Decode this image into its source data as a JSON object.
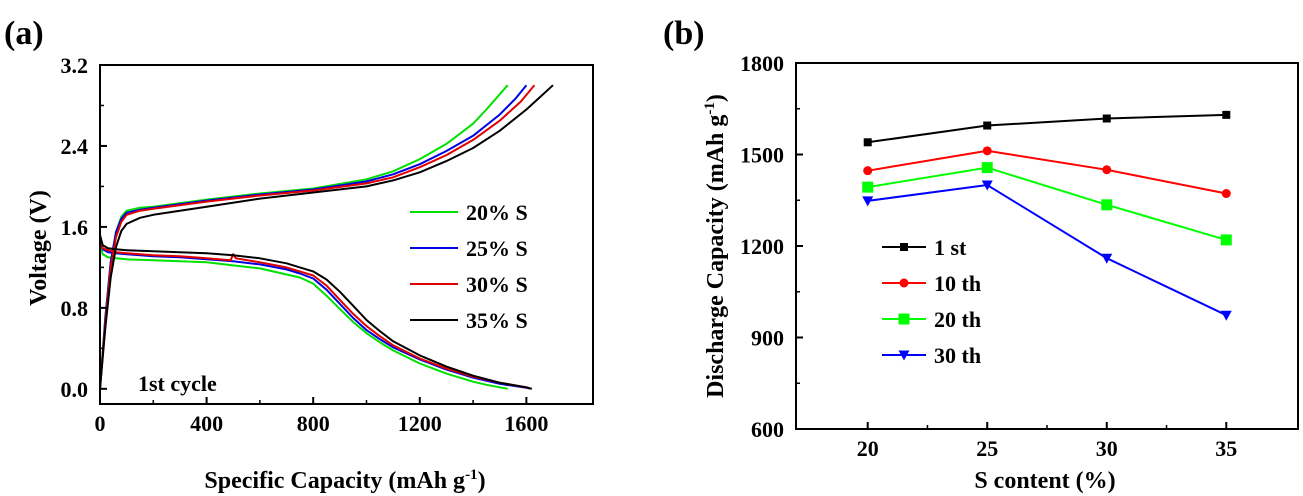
{
  "chart_data": [
    {
      "panel_label": "(a)",
      "type": "line",
      "xlabel": "Specific Capacity (mAh g",
      "xlabel_sup": "-1",
      "xlabel_close": ")",
      "ylabel": "Voltage (V)",
      "xlim": [
        0,
        1850
      ],
      "ylim": [
        -0.15,
        3.2
      ],
      "xticks": [
        0,
        400,
        800,
        1200,
        1600
      ],
      "xtick_labels": [
        "0",
        "400",
        "800",
        "1200",
        "1600"
      ],
      "yticks": [
        0.0,
        0.8,
        1.6,
        2.4,
        3.2
      ],
      "ytick_labels": [
        "0.0",
        "0.8",
        "1.6",
        "2.4",
        "3.2"
      ],
      "annotation": "1st cycle",
      "legend_position": "right",
      "series": [
        {
          "name": "20% S",
          "color": "#00e000",
          "discharge": {
            "x": [
              0,
              10,
              30,
              60,
              100,
              200,
              300,
              400,
              500,
              600,
              700,
              750,
              800,
              850,
              900,
              950,
              1000,
              1050,
              1100,
              1200,
              1300,
              1400,
              1450,
              1500,
              1530
            ],
            "y": [
              1.45,
              1.33,
              1.3,
              1.29,
              1.28,
              1.27,
              1.26,
              1.25,
              1.22,
              1.19,
              1.13,
              1.1,
              1.04,
              0.92,
              0.79,
              0.66,
              0.55,
              0.46,
              0.38,
              0.25,
              0.15,
              0.07,
              0.04,
              0.015,
              0.0
            ]
          },
          "charge": {
            "x": [
              0,
              20,
              40,
              60,
              80,
              100,
              150,
              200,
              400,
              600,
              800,
              1000,
              1100,
              1200,
              1300,
              1400,
              1450,
              1500,
              1530
            ],
            "y": [
              0.0,
              0.7,
              1.25,
              1.55,
              1.7,
              1.76,
              1.79,
              1.8,
              1.87,
              1.93,
              1.98,
              2.07,
              2.15,
              2.27,
              2.42,
              2.62,
              2.76,
              2.91,
              3.0
            ]
          }
        },
        {
          "name": "25% S",
          "color": "#0000e0",
          "discharge": {
            "x": [
              0,
              10,
              30,
              60,
              100,
              200,
              300,
              400,
              500,
              600,
              700,
              750,
              800,
              850,
              900,
              950,
              1000,
              1050,
              1100,
              1200,
              1300,
              1400,
              1500,
              1600,
              1620
            ],
            "y": [
              1.48,
              1.38,
              1.35,
              1.34,
              1.33,
              1.31,
              1.3,
              1.28,
              1.26,
              1.23,
              1.18,
              1.14,
              1.09,
              0.98,
              0.84,
              0.7,
              0.58,
              0.49,
              0.41,
              0.29,
              0.19,
              0.11,
              0.05,
              0.01,
              0.0
            ]
          },
          "charge": {
            "x": [
              0,
              20,
              40,
              60,
              80,
              100,
              150,
              200,
              400,
              600,
              800,
              1000,
              1100,
              1200,
              1300,
              1400,
              1500,
              1560,
              1600
            ],
            "y": [
              0.0,
              0.7,
              1.25,
              1.55,
              1.68,
              1.74,
              1.77,
              1.79,
              1.86,
              1.92,
              1.97,
              2.05,
              2.12,
              2.22,
              2.35,
              2.5,
              2.71,
              2.87,
              3.0
            ]
          }
        },
        {
          "name": "30% S",
          "color": "#e00000",
          "discharge": {
            "x": [
              0,
              10,
              30,
              60,
              100,
              200,
              300,
              400,
              490,
              500,
              510,
              600,
              700,
              750,
              800,
              850,
              900,
              950,
              1000,
              1050,
              1100,
              1200,
              1300,
              1400,
              1500,
              1600,
              1610
            ],
            "y": [
              1.5,
              1.39,
              1.37,
              1.35,
              1.34,
              1.32,
              1.31,
              1.29,
              1.27,
              1.33,
              1.29,
              1.25,
              1.2,
              1.16,
              1.12,
              1.02,
              0.88,
              0.74,
              0.62,
              0.52,
              0.43,
              0.3,
              0.2,
              0.12,
              0.06,
              0.015,
              0.0
            ]
          },
          "charge": {
            "x": [
              0,
              20,
              40,
              60,
              80,
              100,
              150,
              200,
              400,
              600,
              800,
              1000,
              1100,
              1200,
              1300,
              1400,
              1500,
              1580,
              1630
            ],
            "y": [
              0.0,
              0.65,
              1.2,
              1.5,
              1.65,
              1.72,
              1.76,
              1.78,
              1.85,
              1.91,
              1.96,
              2.03,
              2.09,
              2.19,
              2.31,
              2.46,
              2.65,
              2.84,
              3.0
            ]
          }
        },
        {
          "name": "35% S",
          "color": "#000000",
          "discharge": {
            "x": [
              0,
              10,
              30,
              60,
              100,
              200,
              300,
              400,
              500,
              600,
              700,
              750,
              800,
              850,
              900,
              950,
              1000,
              1050,
              1100,
              1200,
              1300,
              1400,
              1500,
              1600,
              1620
            ],
            "y": [
              1.52,
              1.42,
              1.39,
              1.38,
              1.37,
              1.36,
              1.35,
              1.34,
              1.32,
              1.29,
              1.24,
              1.2,
              1.16,
              1.08,
              0.96,
              0.82,
              0.68,
              0.57,
              0.47,
              0.33,
              0.22,
              0.13,
              0.06,
              0.015,
              0.0
            ]
          },
          "charge": {
            "x": [
              0,
              20,
              40,
              60,
              80,
              100,
              150,
              200,
              400,
              600,
              800,
              1000,
              1100,
              1200,
              1300,
              1400,
              1500,
              1600,
              1650,
              1700
            ],
            "y": [
              0.0,
              0.6,
              1.1,
              1.4,
              1.56,
              1.63,
              1.69,
              1.72,
              1.8,
              1.88,
              1.94,
              2.0,
              2.06,
              2.14,
              2.25,
              2.38,
              2.55,
              2.76,
              2.88,
              3.0
            ]
          }
        }
      ]
    },
    {
      "panel_label": "(b)",
      "type": "line",
      "xlabel": "S content  (%)",
      "ylabel": "Discharge Capacity (mAh g",
      "ylabel_sup": "-1",
      "ylabel_close": ")",
      "x": [
        20,
        25,
        30,
        35
      ],
      "xlim": [
        17,
        38
      ],
      "ylim": [
        600,
        1800
      ],
      "xticks": [
        20,
        25,
        30,
        35
      ],
      "xtick_labels": [
        "20",
        "25",
        "30",
        "35"
      ],
      "yticks": [
        600,
        900,
        1200,
        1500,
        1800
      ],
      "ytick_labels": [
        "600",
        "900",
        "1200",
        "1500",
        "1800"
      ],
      "legend_position": "left",
      "series": [
        {
          "name": "1 st",
          "color": "#000000",
          "marker": "square-small",
          "values": [
            1540,
            1595,
            1618,
            1630
          ]
        },
        {
          "name": "10 th",
          "color": "#ff0000",
          "marker": "circle",
          "values": [
            1447,
            1512,
            1450,
            1372
          ]
        },
        {
          "name": "20 th",
          "color": "#00ff00",
          "marker": "square",
          "values": [
            1393,
            1457,
            1335,
            1220
          ]
        },
        {
          "name": "30 th",
          "color": "#0000ff",
          "marker": "triangle-down",
          "values": [
            1348,
            1400,
            1160,
            973
          ]
        }
      ]
    }
  ]
}
